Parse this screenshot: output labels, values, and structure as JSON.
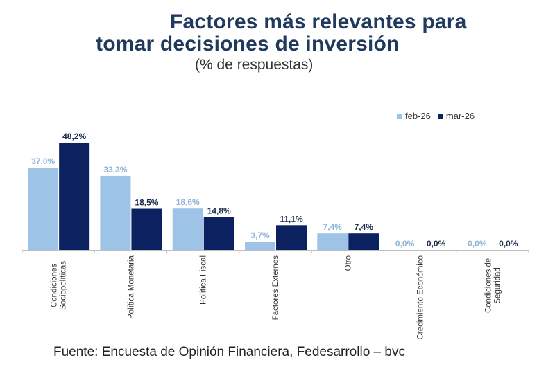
{
  "chart_data": {
    "type": "bar",
    "title": "Factores más relevantes para tomar decisiones de inversión",
    "title_line1": "Factores más relevantes para",
    "title_line2": "tomar decisiones de inversión",
    "subtitle": "(% de respuestas)",
    "xlabel": "",
    "ylabel": "",
    "ylim": [
      0,
      50
    ],
    "grid": false,
    "legend_position": "top-right",
    "categories": [
      "Condiciones Sociopolíticas",
      "Política Monetaria",
      "Política Fiscal",
      "Factores Externos",
      "Otro",
      "Crecimiento Económico",
      "Condiciones de Seguridad"
    ],
    "category_lines": [
      [
        "Condiciones",
        "Sociopolíticas"
      ],
      [
        "Política Monetaria"
      ],
      [
        "Política Fiscal"
      ],
      [
        "Factores Externos"
      ],
      [
        "Otro"
      ],
      [
        "Crecimiento Económico"
      ],
      [
        "Condiciones de",
        "Seguridad"
      ]
    ],
    "series": [
      {
        "name": "feb-26",
        "color": "#9dc3e6",
        "label_color": "#8fb4d9",
        "values": [
          37.0,
          33.3,
          18.6,
          3.7,
          7.4,
          0.0,
          0.0
        ],
        "labels": [
          "37,0%",
          "33,3%",
          "18,6%",
          "3,7%",
          "7,4%",
          "0,0%",
          "0,0%"
        ]
      },
      {
        "name": "mar-26",
        "color": "#0b2160",
        "label_color": "#1a2a4a",
        "values": [
          48.2,
          18.5,
          14.8,
          11.1,
          7.4,
          0.0,
          0.0
        ],
        "labels": [
          "48,2%",
          "18,5%",
          "14,8%",
          "11,1%",
          "7,4%",
          "0,0%",
          "0,0%"
        ]
      }
    ],
    "source": "Fuente: Encuesta de Opinión Financiera, Fedesarrollo – bvc"
  }
}
